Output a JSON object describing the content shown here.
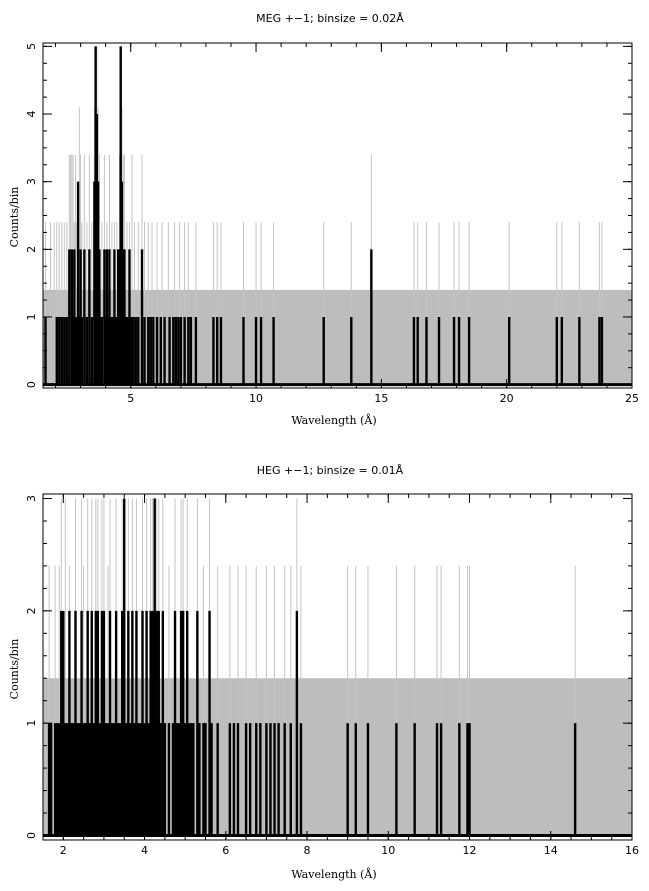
{
  "chart_data": [
    {
      "type": "histogram",
      "title": "MEG +−1; binsize = 0.02Å",
      "xlabel": "Wavelength (Å)",
      "ylabel": "Counts/bin",
      "xlim": [
        1.5,
        25
      ],
      "ylim": [
        -0.05,
        5.05
      ],
      "xticks": [
        5,
        10,
        15,
        20,
        25
      ],
      "yticks": [
        0,
        1,
        2,
        3,
        4,
        5
      ],
      "grid": false,
      "legend": "none",
      "band": {
        "upper": 1.4,
        "color": "#bdbdbd"
      },
      "series": [
        {
          "role": "binned counts",
          "color": "#000000",
          "x": [
            1.6,
            2.05,
            2.15,
            2.25,
            2.35,
            2.45,
            2.55,
            2.65,
            2.7,
            2.75,
            2.8,
            2.85,
            2.9,
            2.95,
            3.0,
            3.05,
            3.15,
            3.25,
            3.35,
            3.45,
            3.55,
            3.6,
            3.65,
            3.7,
            3.75,
            3.8,
            3.85,
            3.95,
            4.0,
            4.05,
            4.1,
            4.15,
            4.2,
            4.25,
            4.3,
            4.35,
            4.4,
            4.45,
            4.5,
            4.55,
            4.6,
            4.65,
            4.7,
            4.75,
            4.8,
            4.85,
            4.9,
            4.95,
            5.0,
            5.05,
            5.1,
            5.2,
            5.3,
            5.45,
            5.55,
            5.7,
            5.8,
            5.9,
            6.05,
            6.2,
            6.35,
            6.55,
            6.7,
            6.8,
            6.9,
            7.0,
            7.15,
            7.3,
            7.4,
            7.6,
            8.3,
            8.45,
            8.6,
            9.5,
            10.0,
            10.2,
            10.7,
            12.7,
            13.8,
            14.6,
            16.3,
            16.45,
            16.8,
            17.3,
            17.9,
            18.1,
            18.5,
            20.1,
            22.0,
            22.2,
            22.9,
            23.7,
            23.8
          ],
          "values": [
            1,
            1,
            1,
            1,
            1,
            1,
            2,
            2,
            1,
            2,
            1,
            1,
            3,
            1,
            2,
            1,
            2,
            1,
            2,
            1,
            3,
            5,
            4,
            3,
            2,
            1,
            1,
            2,
            1,
            2,
            1,
            2,
            1,
            1,
            1,
            2,
            1,
            1,
            2,
            2,
            5,
            3,
            2,
            2,
            1,
            1,
            1,
            2,
            1,
            1,
            1,
            1,
            1,
            2,
            1,
            1,
            1,
            1,
            1,
            1,
            1,
            1,
            1,
            1,
            1,
            1,
            1,
            1,
            1,
            1,
            1,
            1,
            1,
            1,
            1,
            1,
            1,
            1,
            1,
            2,
            1,
            1,
            1,
            1,
            1,
            1,
            1,
            1,
            1,
            1,
            1,
            1,
            1
          ]
        },
        {
          "role": "upper uncertainty",
          "color": "#c4c4c4",
          "x": [
            1.6,
            1.8,
            1.95,
            2.05,
            2.15,
            2.25,
            2.35,
            2.45,
            2.55,
            2.6,
            2.65,
            2.7,
            2.75,
            2.8,
            2.85,
            2.9,
            2.95,
            3.0,
            3.05,
            3.15,
            3.25,
            3.35,
            3.45,
            3.55,
            3.6,
            3.65,
            3.7,
            3.75,
            3.85,
            3.95,
            4.05,
            4.15,
            4.25,
            4.35,
            4.45,
            4.55,
            4.6,
            4.65,
            4.7,
            4.75,
            4.85,
            4.95,
            5.05,
            5.15,
            5.3,
            5.45,
            5.55,
            5.7,
            5.85,
            6.05,
            6.25,
            6.5,
            6.75,
            6.95,
            7.15,
            7.3,
            7.6,
            8.3,
            8.45,
            8.6,
            9.5,
            10.0,
            10.2,
            10.7,
            12.7,
            13.8,
            14.6,
            16.3,
            16.45,
            16.8,
            17.3,
            17.9,
            18.1,
            18.5,
            20.1,
            22.0,
            22.2,
            22.9,
            23.7,
            23.8
          ],
          "values": [
            2.4,
            2.4,
            2.4,
            2.4,
            2.4,
            2.4,
            2.4,
            2.4,
            3.4,
            3.4,
            3.4,
            3.4,
            2.4,
            3.4,
            2.4,
            2.4,
            4.1,
            3.4,
            2.4,
            3.4,
            2.4,
            3.4,
            2.4,
            4.1,
            5.0,
            5.0,
            4.1,
            3.4,
            2.4,
            3.4,
            2.4,
            3.4,
            2.4,
            2.4,
            2.4,
            3.4,
            5.0,
            4.1,
            3.4,
            3.4,
            2.4,
            2.4,
            3.4,
            2.4,
            2.4,
            3.4,
            2.4,
            2.4,
            2.4,
            2.4,
            2.4,
            2.4,
            2.4,
            2.4,
            2.4,
            2.4,
            2.4,
            2.4,
            2.4,
            2.4,
            2.4,
            2.4,
            2.4,
            2.4,
            2.4,
            2.4,
            3.4,
            2.4,
            2.4,
            2.4,
            2.4,
            2.4,
            2.4,
            2.4,
            2.4,
            2.4,
            2.4,
            2.4,
            2.4,
            2.4
          ]
        }
      ]
    },
    {
      "type": "histogram",
      "title": "HEG +−1; binsize = 0.01Å",
      "xlabel": "Wavelength (Å)",
      "ylabel": "Counts/bin",
      "xlim": [
        1.5,
        16
      ],
      "ylim": [
        -0.04,
        3.04
      ],
      "xticks": [
        2,
        4,
        6,
        8,
        10,
        12,
        14,
        16
      ],
      "yticks": [
        0,
        1,
        2,
        3
      ],
      "grid": false,
      "legend": "none",
      "band": {
        "upper": 1.4,
        "color": "#bdbdbd"
      },
      "series": [
        {
          "role": "binned counts",
          "color": "#000000",
          "x": [
            1.65,
            1.7,
            1.8,
            1.85,
            1.9,
            1.95,
            2.0,
            2.05,
            2.1,
            2.15,
            2.2,
            2.25,
            2.3,
            2.35,
            2.4,
            2.45,
            2.5,
            2.55,
            2.6,
            2.65,
            2.7,
            2.75,
            2.8,
            2.85,
            2.9,
            2.95,
            3.0,
            3.05,
            3.1,
            3.15,
            3.2,
            3.25,
            3.3,
            3.35,
            3.4,
            3.45,
            3.5,
            3.55,
            3.6,
            3.65,
            3.7,
            3.75,
            3.8,
            3.85,
            3.9,
            3.95,
            4.0,
            4.05,
            4.1,
            4.15,
            4.2,
            4.25,
            4.3,
            4.35,
            4.4,
            4.45,
            4.5,
            4.6,
            4.7,
            4.75,
            4.8,
            4.85,
            4.9,
            4.95,
            5.0,
            5.05,
            5.1,
            5.15,
            5.2,
            5.3,
            5.35,
            5.45,
            5.5,
            5.6,
            5.65,
            5.8,
            6.1,
            6.2,
            6.3,
            6.5,
            6.6,
            6.75,
            6.85,
            7.0,
            7.1,
            7.2,
            7.3,
            7.45,
            7.6,
            7.75,
            7.85,
            9.0,
            9.2,
            9.5,
            10.2,
            10.65,
            11.2,
            11.3,
            11.75,
            11.95,
            12.0,
            14.6
          ],
          "values": [
            1,
            1,
            1,
            1,
            1,
            2,
            2,
            1,
            1,
            2,
            1,
            1,
            2,
            1,
            1,
            2,
            1,
            1,
            2,
            1,
            2,
            1,
            2,
            2,
            1,
            2,
            2,
            1,
            1,
            2,
            1,
            1,
            2,
            1,
            1,
            2,
            3,
            1,
            2,
            1,
            2,
            1,
            2,
            1,
            1,
            2,
            1,
            2,
            1,
            2,
            2,
            3,
            2,
            2,
            1,
            2,
            1,
            1,
            1,
            2,
            1,
            1,
            2,
            2,
            1,
            2,
            1,
            1,
            1,
            2,
            1,
            1,
            1,
            2,
            1,
            1,
            1,
            1,
            1,
            1,
            1,
            1,
            1,
            1,
            1,
            1,
            1,
            1,
            1,
            2,
            1,
            1,
            1,
            1,
            1,
            1,
            1,
            1,
            1,
            1,
            1,
            1
          ]
        },
        {
          "role": "upper uncertainty",
          "color": "#c4c4c4",
          "x": [
            1.65,
            1.8,
            1.9,
            1.95,
            2.05,
            2.15,
            2.3,
            2.45,
            2.5,
            2.6,
            2.7,
            2.8,
            2.85,
            2.95,
            3.0,
            3.1,
            3.15,
            3.3,
            3.45,
            3.5,
            3.6,
            3.7,
            3.8,
            3.95,
            4.05,
            4.15,
            4.2,
            4.25,
            4.3,
            4.35,
            4.45,
            4.6,
            4.75,
            4.9,
            4.95,
            5.05,
            5.3,
            5.45,
            5.6,
            5.8,
            6.1,
            6.3,
            6.5,
            6.75,
            7.0,
            7.2,
            7.45,
            7.6,
            7.75,
            7.85,
            9.0,
            9.2,
            9.5,
            10.2,
            10.65,
            11.2,
            11.3,
            11.75,
            11.95,
            12.0,
            14.6
          ],
          "values": [
            2.4,
            2.4,
            2.4,
            3.0,
            3.0,
            2.4,
            3.0,
            3.0,
            2.4,
            3.0,
            3.0,
            3.0,
            3.0,
            3.0,
            3.0,
            2.4,
            3.0,
            3.0,
            3.0,
            3.0,
            3.0,
            3.0,
            3.0,
            3.0,
            3.0,
            3.0,
            3.0,
            3.0,
            3.0,
            3.0,
            3.0,
            2.4,
            3.0,
            3.0,
            3.0,
            3.0,
            3.0,
            2.4,
            3.0,
            2.4,
            2.4,
            2.4,
            2.4,
            2.4,
            2.4,
            2.4,
            2.4,
            2.4,
            3.0,
            2.4,
            2.4,
            2.4,
            2.4,
            2.4,
            2.4,
            2.4,
            2.4,
            2.4,
            2.4,
            2.4,
            2.4
          ]
        }
      ]
    }
  ]
}
